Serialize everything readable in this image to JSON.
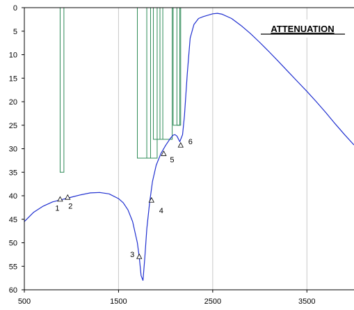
{
  "chart_data": {
    "type": "line",
    "title": "ATTENUATION",
    "xlim": [
      500,
      4000
    ],
    "ylim": [
      0,
      60
    ],
    "y_inverted": true,
    "x_ticks": [
      500,
      1500,
      2500,
      3500
    ],
    "x_tick_labels": [
      "500",
      "1500",
      "2500",
      "3500"
    ],
    "y_ticks": [
      0,
      5,
      10,
      15,
      20,
      25,
      30,
      35,
      40,
      45,
      50,
      55,
      60
    ],
    "y_tick_labels": [
      "0",
      "5",
      "10",
      "15",
      "20",
      "25",
      "30",
      "35",
      "40",
      "45",
      "50",
      "55",
      "60"
    ],
    "grid": {
      "vertical": true,
      "horizontal": false
    },
    "colors": {
      "curve": "#1f2fd0",
      "mask": "#2e8b57",
      "grid": "#c8c8c8",
      "axis": "#000000"
    },
    "series": [
      {
        "x": [
          500,
          600,
          700,
          800,
          900,
          1000,
          1100,
          1200,
          1300,
          1400,
          1500,
          1550,
          1600,
          1650,
          1700,
          1720,
          1740,
          1760,
          1780,
          1800,
          1830,
          1860,
          1900,
          1950,
          2000,
          2050,
          2080,
          2100,
          2120,
          2150,
          2180,
          2200,
          2230,
          2260,
          2300,
          2350,
          2400,
          2450,
          2500,
          2550,
          2600,
          2700,
          2800,
          2900,
          3000,
          3100,
          3200,
          3300,
          3400,
          3500,
          3600,
          3700,
          3800,
          3900,
          4000
        ],
        "values": [
          45.5,
          43.5,
          42.2,
          41.3,
          40.8,
          40.3,
          39.8,
          39.4,
          39.3,
          39.6,
          40.6,
          41.5,
          43.0,
          45.5,
          50.0,
          53.0,
          57.0,
          58.0,
          53.0,
          47.0,
          41.5,
          37.0,
          33.5,
          31.0,
          29.3,
          27.8,
          27.1,
          27.0,
          27.3,
          28.5,
          27.0,
          23.0,
          14.0,
          6.5,
          3.6,
          2.3,
          1.9,
          1.6,
          1.3,
          1.2,
          1.4,
          2.3,
          3.8,
          5.5,
          7.4,
          9.4,
          11.5,
          13.6,
          15.7,
          17.8,
          20.0,
          22.3,
          24.7,
          27.0,
          29.2
        ]
      }
    ],
    "markers": [
      {
        "label": "1",
        "x": 880,
        "y": 40.8
      },
      {
        "label": "2",
        "x": 960,
        "y": 40.4
      },
      {
        "label": "3",
        "x": 1720,
        "y": 53.0
      },
      {
        "label": "4",
        "x": 1850,
        "y": 41.0
      },
      {
        "label": "5",
        "x": 1980,
        "y": 31.1
      },
      {
        "label": "6",
        "x": 2160,
        "y": 29.3
      }
    ],
    "mask_bars": [
      {
        "x_start": 880,
        "x_end": 920,
        "depth": 35
      },
      {
        "x_start": 1700,
        "x_end": 1840,
        "depth": 32
      },
      {
        "x_start": 1800,
        "x_end": 1910,
        "depth": 32
      },
      {
        "x_start": 1870,
        "x_end": 1970,
        "depth": 28
      },
      {
        "x_start": 1940,
        "x_end": 2070,
        "depth": 28
      },
      {
        "x_start": 2080,
        "x_end": 2150,
        "depth": 25
      },
      {
        "x_start": 2120,
        "x_end": 2160,
        "depth": 25
      }
    ]
  }
}
